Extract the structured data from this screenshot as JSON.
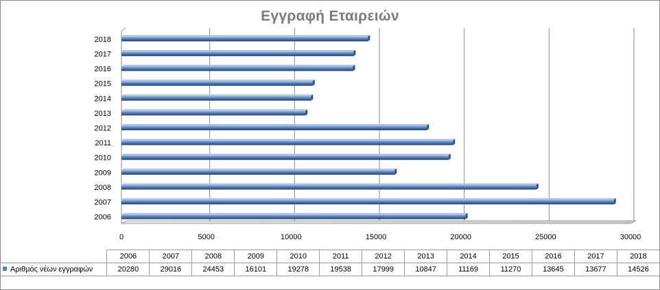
{
  "chart_data": {
    "type": "bar",
    "orientation": "horizontal",
    "title": "Εγγραφή Εταιρειών",
    "categories": [
      "2006",
      "2007",
      "2008",
      "2009",
      "2010",
      "2011",
      "2012",
      "2013",
      "2014",
      "2015",
      "2016",
      "2017",
      "2018"
    ],
    "series": [
      {
        "name": "Αριθμός νέων εγγραφών",
        "values": [
          20280,
          29016,
          24453,
          16101,
          19278,
          19538,
          17999,
          10847,
          11169,
          11270,
          13645,
          13677,
          14526
        ]
      }
    ],
    "xlim": [
      0,
      30000
    ],
    "x_ticks": [
      0,
      5000,
      10000,
      15000,
      20000,
      25000,
      30000
    ],
    "grid": true,
    "data_table": true,
    "bar_color": "#4f81bd"
  }
}
